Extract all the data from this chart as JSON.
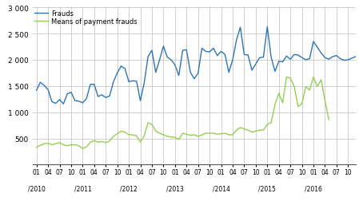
{
  "frauds": [
    1420,
    1570,
    1510,
    1430,
    1200,
    1170,
    1240,
    1160,
    1350,
    1380,
    1220,
    1210,
    1180,
    1260,
    1530,
    1530,
    1300,
    1330,
    1280,
    1310,
    1580,
    1750,
    1880,
    1830,
    1580,
    1600,
    1590,
    1220,
    1560,
    2060,
    2180,
    1760,
    2000,
    2260,
    2050,
    2000,
    1900,
    1700,
    2180,
    2190,
    1760,
    1640,
    1740,
    2220,
    2160,
    2150,
    2220,
    2080,
    2160,
    2100,
    1760,
    2000,
    2380,
    2620,
    2100,
    2090,
    1800,
    1920,
    2040,
    2050,
    2630,
    2050,
    1780,
    1970,
    1960,
    2070,
    2010,
    2100,
    2090,
    2040,
    2000,
    2020,
    2350,
    2240,
    2130,
    2040,
    2010,
    2060,
    2080,
    2020,
    1990,
    2000,
    2030,
    2060
  ],
  "payment_frauds": [
    330,
    370,
    400,
    410,
    380,
    400,
    420,
    380,
    360,
    380,
    380,
    360,
    310,
    340,
    430,
    460,
    430,
    440,
    420,
    450,
    540,
    590,
    640,
    620,
    570,
    570,
    550,
    430,
    550,
    800,
    770,
    640,
    600,
    570,
    540,
    530,
    520,
    480,
    600,
    580,
    560,
    570,
    540,
    570,
    600,
    600,
    600,
    580,
    590,
    600,
    570,
    570,
    660,
    710,
    680,
    660,
    620,
    640,
    660,
    660,
    770,
    800,
    1150,
    1360,
    1180,
    1670,
    1650,
    1490,
    1110,
    1160,
    1490,
    1420,
    1670,
    1490,
    1620,
    1220,
    860
  ],
  "fraud_color": "#2E75B6",
  "payment_color": "#92D050",
  "background_color": "#ffffff",
  "grid_color": "#c8c8c8",
  "ylim": [
    0,
    3000
  ],
  "yticks": [
    0,
    500,
    1000,
    1500,
    2000,
    2500,
    3000
  ],
  "ytick_labels": [
    "",
    "500",
    "1 000",
    "1 500",
    "2 000",
    "2 500",
    "3 000"
  ],
  "legend_fraud": "Frauds",
  "legend_payment": "Means of payment frauds",
  "linewidth": 1.0
}
